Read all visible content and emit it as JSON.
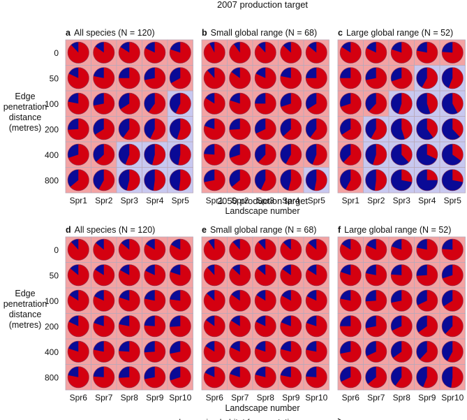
{
  "sections": [
    {
      "title": "2007 production target",
      "x_ticks": [
        "Spr1",
        "Spr2",
        "Spr3",
        "Spr4",
        "Spr5"
      ],
      "x_label": "Landscape number",
      "y_label": [
        "Edge",
        "penetration",
        "distance",
        "(metres)"
      ],
      "y_ticks": [
        "0",
        "50",
        "100",
        "200",
        "400",
        "800"
      ],
      "panels": [
        {
          "letter": "a",
          "title": "All species (N = 120)",
          "blue_fraction": [
            [
              0.12,
              0.15,
              0.16,
              0.18,
              0.2
            ],
            [
              0.18,
              0.22,
              0.25,
              0.28,
              0.33
            ],
            [
              0.22,
              0.28,
              0.34,
              0.4,
              0.43
            ],
            [
              0.26,
              0.34,
              0.4,
              0.43,
              0.45
            ],
            [
              0.3,
              0.37,
              0.44,
              0.46,
              0.47
            ],
            [
              0.36,
              0.42,
              0.46,
              0.48,
              0.48
            ]
          ],
          "highlighted": [
            [],
            [],
            [
              4
            ],
            [
              4
            ],
            [
              2,
              3,
              4
            ],
            [
              2,
              3,
              4
            ]
          ]
        },
        {
          "letter": "b",
          "title": "Small global range (N = 68)",
          "blue_fraction": [
            [
              0.08,
              0.1,
              0.12,
              0.13,
              0.14
            ],
            [
              0.12,
              0.15,
              0.18,
              0.22,
              0.25
            ],
            [
              0.16,
              0.2,
              0.25,
              0.3,
              0.34
            ],
            [
              0.2,
              0.26,
              0.32,
              0.37,
              0.4
            ],
            [
              0.24,
              0.3,
              0.38,
              0.42,
              0.44
            ],
            [
              0.28,
              0.36,
              0.43,
              0.46,
              0.47
            ]
          ],
          "highlighted": [
            [],
            [],
            [],
            [],
            [],
            [
              4
            ]
          ]
        },
        {
          "letter": "c",
          "title": "Large global range (N = 52)",
          "blue_fraction": [
            [
              0.16,
              0.18,
              0.2,
              0.22,
              0.24
            ],
            [
              0.25,
              0.28,
              0.3,
              0.42,
              0.44
            ],
            [
              0.3,
              0.38,
              0.45,
              0.55,
              0.58
            ],
            [
              0.34,
              0.42,
              0.55,
              0.6,
              0.62
            ],
            [
              0.38,
              0.45,
              0.62,
              0.68,
              0.65
            ],
            [
              0.42,
              0.48,
              0.72,
              0.75,
              0.72
            ]
          ],
          "highlighted": [
            [],
            [
              3,
              4
            ],
            [
              2,
              3,
              4
            ],
            [
              1,
              2,
              3,
              4
            ],
            [
              1,
              2,
              3,
              4
            ],
            [
              1,
              2,
              3,
              4
            ]
          ]
        }
      ]
    },
    {
      "title": "2050 production target",
      "x_ticks": [
        "Spr6",
        "Spr7",
        "Spr8",
        "Spr9",
        "Spr10"
      ],
      "x_label": "Landscape number",
      "footer": "Increasing habitat fragmentation",
      "y_label": [
        "Edge",
        "penetration",
        "distance",
        "(metres)"
      ],
      "y_ticks": [
        "0",
        "50",
        "100",
        "200",
        "400",
        "800"
      ],
      "panels": [
        {
          "letter": "d",
          "title": "All species (N = 120)",
          "blue_fraction": [
            [
              0.12,
              0.14,
              0.14,
              0.16,
              0.17
            ],
            [
              0.14,
              0.16,
              0.17,
              0.18,
              0.2
            ],
            [
              0.16,
              0.18,
              0.2,
              0.22,
              0.23
            ],
            [
              0.18,
              0.2,
              0.22,
              0.24,
              0.26
            ],
            [
              0.2,
              0.22,
              0.24,
              0.26,
              0.28
            ],
            [
              0.22,
              0.24,
              0.26,
              0.28,
              0.3
            ]
          ],
          "highlighted": [
            [],
            [],
            [],
            [],
            [],
            []
          ]
        },
        {
          "letter": "e",
          "title": "Small global range (N = 68)",
          "blue_fraction": [
            [
              0.1,
              0.12,
              0.12,
              0.13,
              0.14
            ],
            [
              0.12,
              0.13,
              0.14,
              0.15,
              0.16
            ],
            [
              0.13,
              0.15,
              0.16,
              0.17,
              0.18
            ],
            [
              0.15,
              0.16,
              0.18,
              0.19,
              0.2
            ],
            [
              0.16,
              0.18,
              0.2,
              0.21,
              0.22
            ],
            [
              0.18,
              0.2,
              0.21,
              0.22,
              0.24
            ]
          ],
          "highlighted": [
            [],
            [],
            [],
            [],
            [],
            []
          ]
        },
        {
          "letter": "f",
          "title": "Large global range (N = 52)",
          "blue_fraction": [
            [
              0.16,
              0.18,
              0.2,
              0.22,
              0.24
            ],
            [
              0.2,
              0.22,
              0.24,
              0.26,
              0.3
            ],
            [
              0.22,
              0.26,
              0.28,
              0.32,
              0.34
            ],
            [
              0.25,
              0.28,
              0.32,
              0.35,
              0.38
            ],
            [
              0.28,
              0.32,
              0.35,
              0.38,
              0.42
            ],
            [
              0.32,
              0.36,
              0.4,
              0.44,
              0.48
            ]
          ],
          "highlighted": [
            [],
            [],
            [],
            [],
            [],
            []
          ]
        }
      ]
    }
  ],
  "colors": {
    "cell_background": "#f3a3a3",
    "cell_highlight": "#c8c8f0",
    "cell_border": "#b9a9b9",
    "pie_major": "#d40010",
    "pie_minor": "#0a0a96",
    "pie_outline": "#8a3b5a"
  },
  "chart_data": {
    "type": "pie-grid",
    "title": "",
    "rows_label": "Edge penetration distance (metres)",
    "rows": [
      "0",
      "50",
      "100",
      "200",
      "400",
      "800"
    ],
    "columns_label": "Landscape number",
    "series": [
      "red share",
      "blue share"
    ]
  }
}
